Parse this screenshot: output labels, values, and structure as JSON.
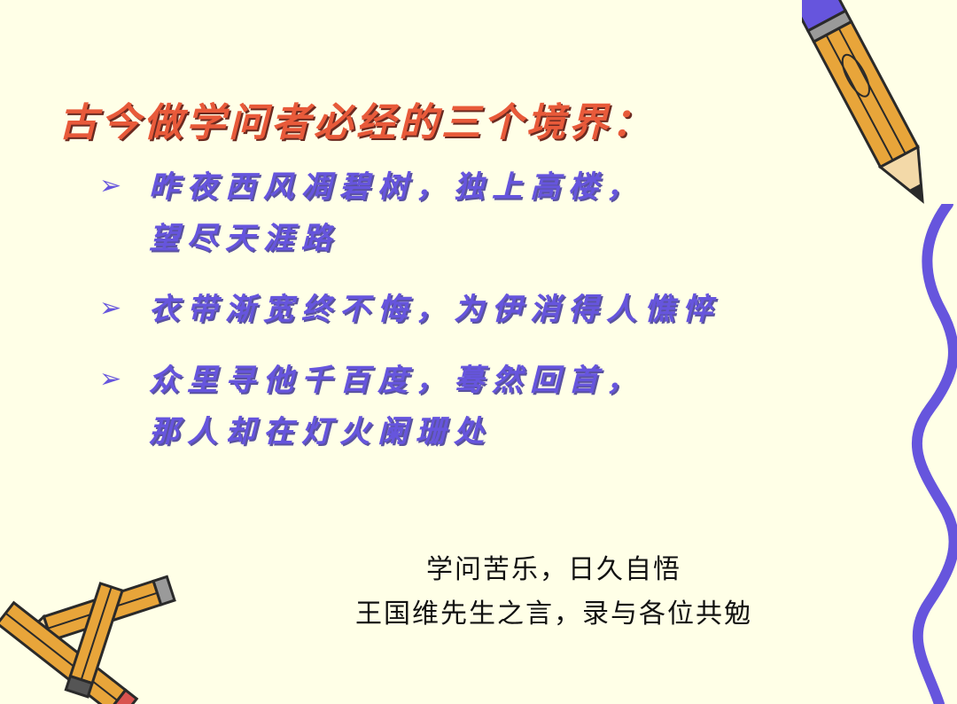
{
  "colors": {
    "background": "#FFFFE7",
    "title": "#E85A3A",
    "bullet_text": "#6655DD",
    "bullet_marker": "#6655DD",
    "quote_text": "#111111",
    "wave_line": "#6655DD",
    "pencil_body": "#E8A53A",
    "pencil_outline": "#2A2A2A"
  },
  "decorations": {
    "pencil_top_right": "pencil-icon",
    "pencils_bottom_left": "pencil-icon",
    "wave_right": "wavy-line-icon",
    "bullet_marker_icon": "arrowhead-bullet-icon"
  },
  "title": "古今做学问者必经的三个境界：",
  "bullets": [
    {
      "marker": "➢",
      "lines": [
        "昨夜西风凋碧树，独上高楼，",
        "望尽天涯路"
      ]
    },
    {
      "marker": "➢",
      "lines": [
        "衣带渐宽终不悔，为伊消得人憔悴"
      ]
    },
    {
      "marker": "➢",
      "lines": [
        "众里寻他千百度，蓦然回首，",
        "那人却在灯火阑珊处"
      ]
    }
  ],
  "quote": {
    "line1": "学问苦乐，日久自悟",
    "line2": "王国维先生之言，录与各位共勉"
  }
}
